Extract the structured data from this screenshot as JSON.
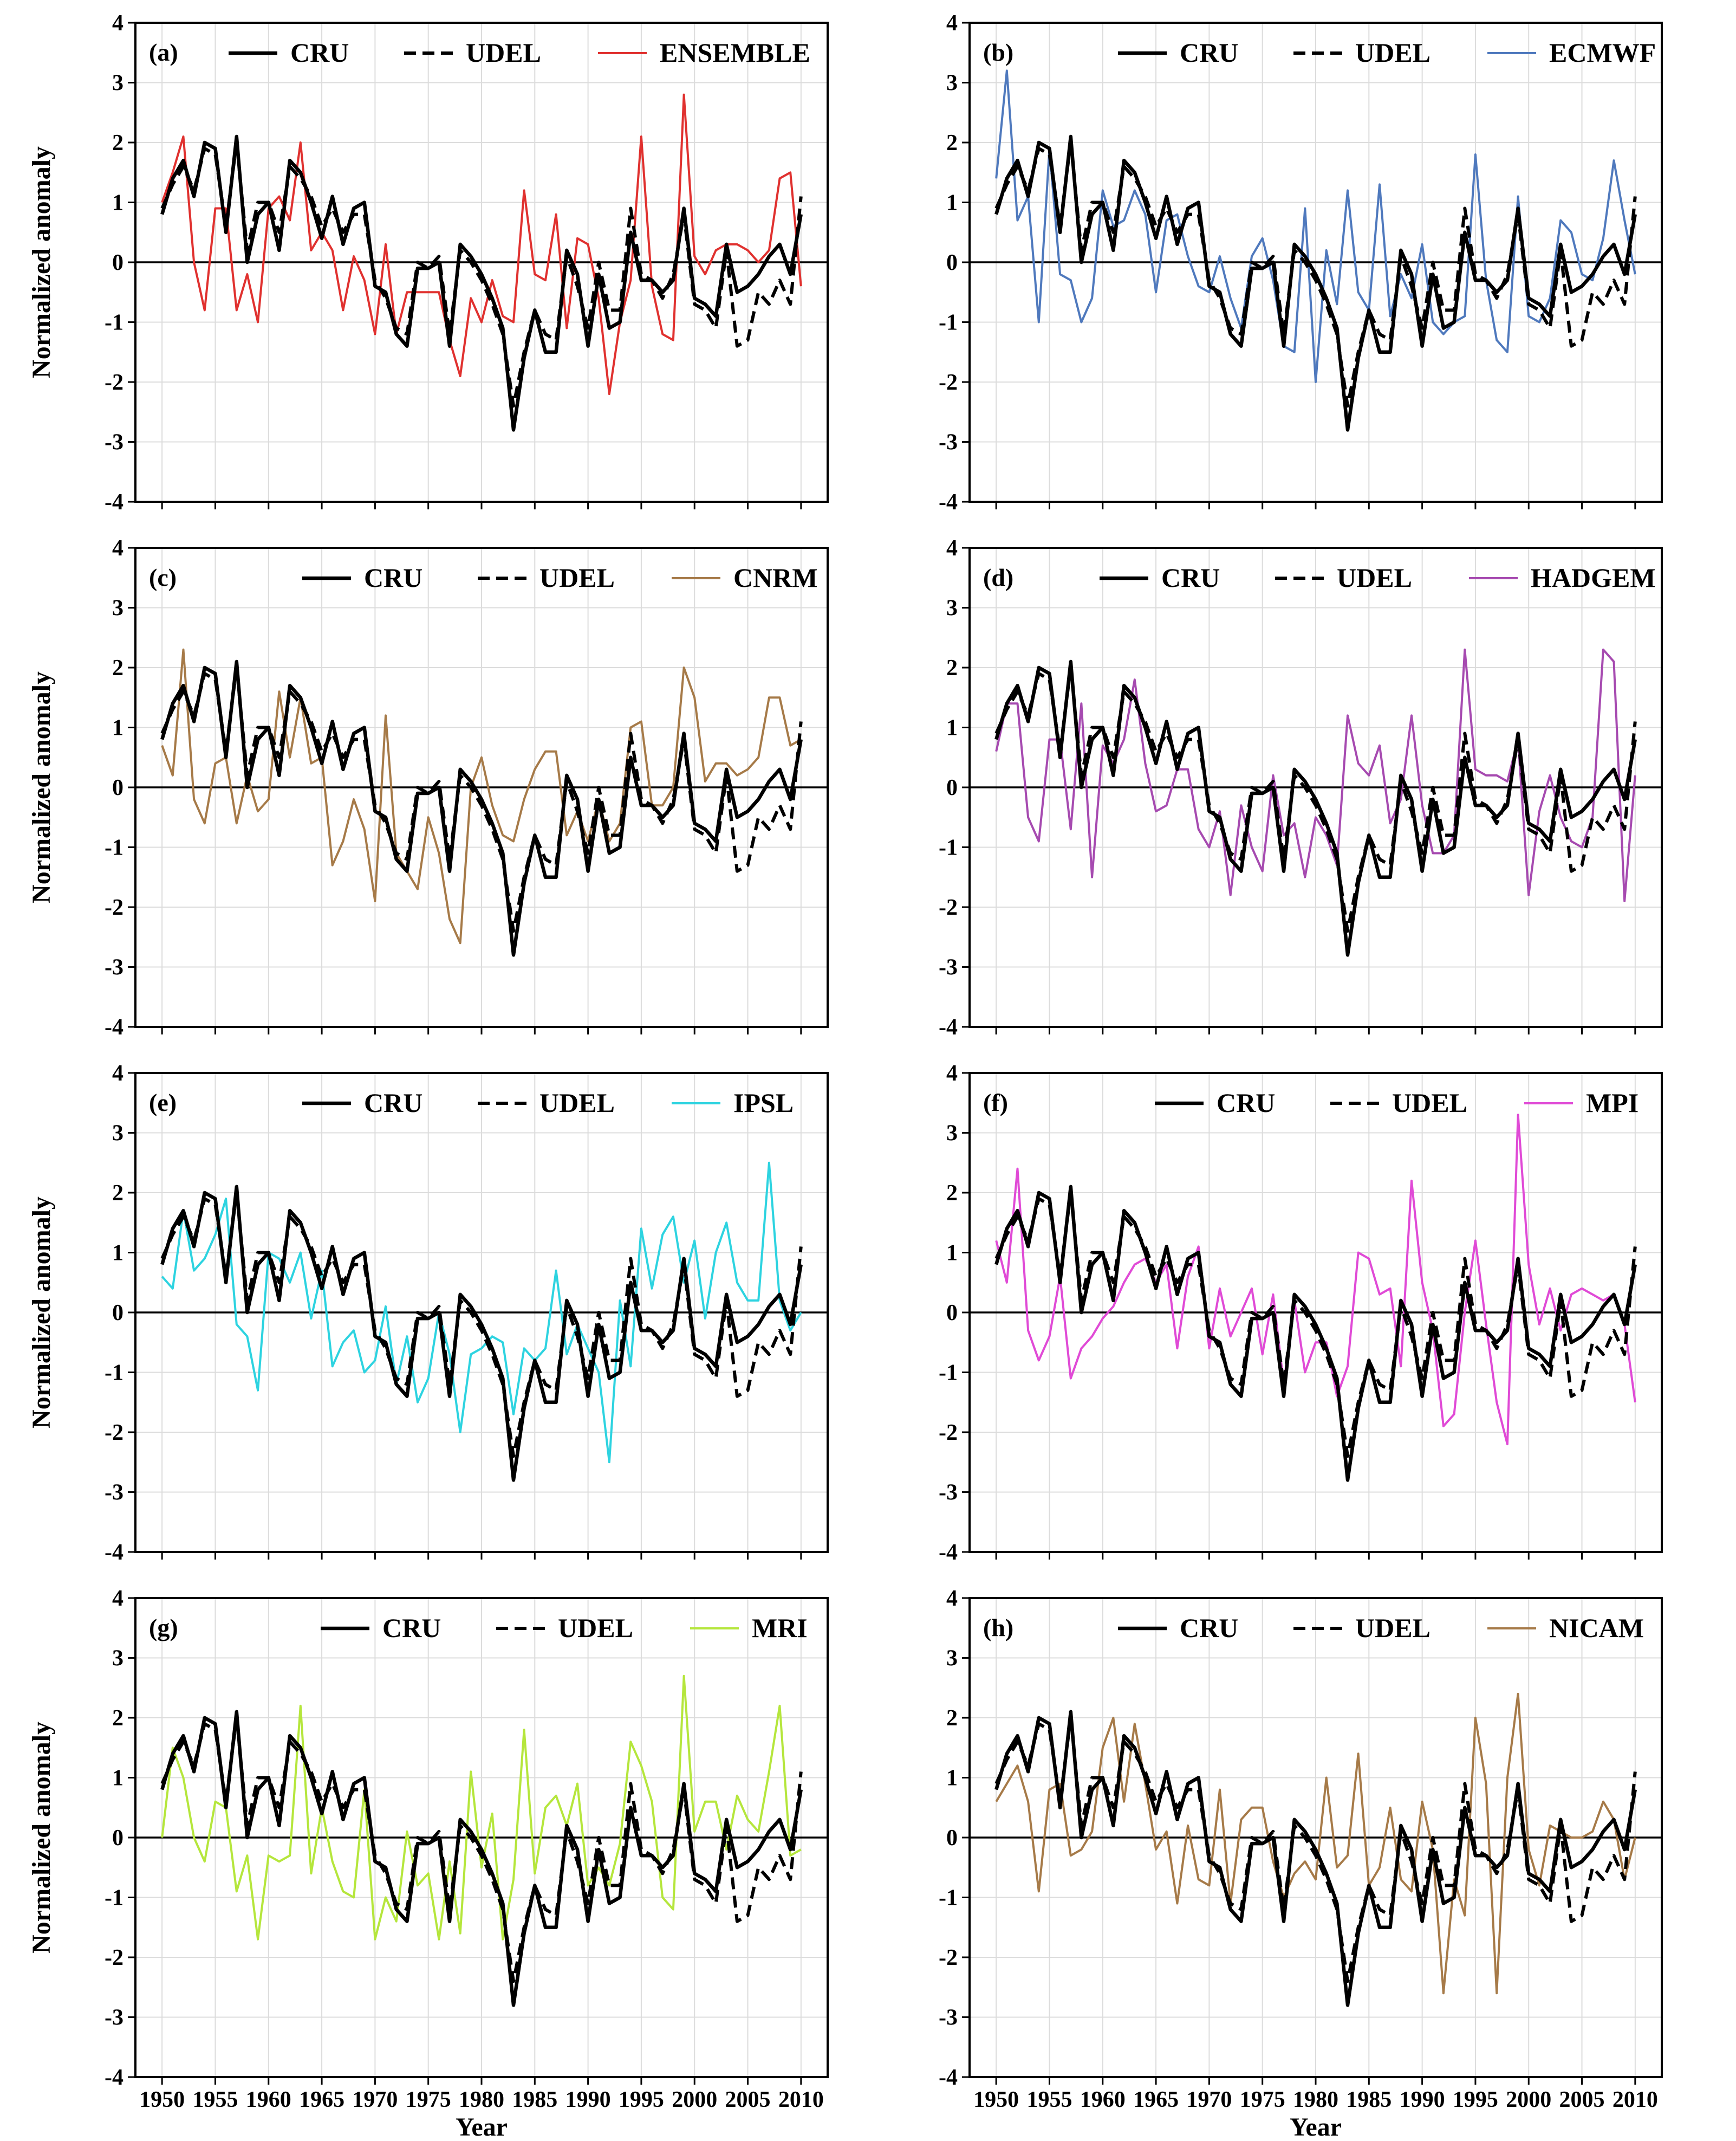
{
  "figure": {
    "ylabel": "Normalized anomaly",
    "xlabel": "Year",
    "xlim": [
      1947.5,
      2012.5
    ],
    "ylim": [
      -4,
      4
    ],
    "xticks": [
      1950,
      1955,
      1960,
      1965,
      1970,
      1975,
      1980,
      1985,
      1990,
      1995,
      2000,
      2005,
      2010
    ],
    "yticks": [
      4,
      3,
      2,
      1,
      0,
      -1,
      -2,
      -3,
      -4
    ],
    "legend_position": "top"
  },
  "chart_data": {
    "type": "line",
    "years": [
      1950,
      1951,
      1952,
      1953,
      1954,
      1955,
      1956,
      1957,
      1958,
      1959,
      1960,
      1961,
      1962,
      1963,
      1964,
      1965,
      1966,
      1967,
      1968,
      1969,
      1970,
      1971,
      1972,
      1973,
      1974,
      1975,
      1976,
      1977,
      1978,
      1979,
      1980,
      1981,
      1982,
      1983,
      1984,
      1985,
      1986,
      1987,
      1988,
      1989,
      1990,
      1991,
      1992,
      1993,
      1994,
      1995,
      1996,
      1997,
      1998,
      1999,
      2000,
      2001,
      2002,
      2003,
      2004,
      2005,
      2006,
      2007,
      2008,
      2009,
      2010
    ],
    "reference_series": [
      {
        "name": "CRU",
        "style": "solid",
        "color": "#000000",
        "values": [
          0.8,
          1.4,
          1.7,
          1.1,
          2.0,
          1.9,
          0.5,
          2.1,
          0.0,
          0.8,
          1.0,
          0.2,
          1.7,
          1.5,
          1.0,
          0.4,
          1.1,
          0.3,
          0.9,
          1.0,
          -0.4,
          -0.5,
          -1.2,
          -1.4,
          -0.1,
          -0.1,
          0.0,
          -1.4,
          0.3,
          0.1,
          -0.2,
          -0.6,
          -1.1,
          -2.8,
          -1.6,
          -0.8,
          -1.5,
          -1.5,
          0.2,
          -0.2,
          -1.4,
          -0.2,
          -1.1,
          -1.0,
          0.5,
          -0.3,
          -0.3,
          -0.5,
          -0.3,
          0.9,
          -0.6,
          -0.7,
          -0.9,
          0.3,
          -0.5,
          -0.4,
          -0.2,
          0.1,
          0.3,
          -0.2,
          0.8
        ]
      },
      {
        "name": "UDEL",
        "style": "dashed",
        "color": "#000000",
        "values": [
          0.9,
          1.3,
          1.6,
          1.2,
          1.9,
          1.8,
          0.6,
          2.0,
          0.2,
          1.0,
          1.0,
          0.5,
          1.6,
          1.4,
          1.1,
          0.6,
          0.9,
          0.5,
          0.8,
          0.8,
          -0.3,
          -0.6,
          -1.1,
          -1.2,
          0.0,
          -0.1,
          0.1,
          -1.2,
          0.2,
          0.0,
          -0.3,
          -0.7,
          -1.2,
          -2.4,
          -1.5,
          -0.8,
          -1.2,
          -1.3,
          0.1,
          -0.4,
          -1.1,
          0.0,
          -0.8,
          -0.8,
          0.9,
          -0.2,
          -0.3,
          -0.6,
          -0.2,
          0.8,
          -0.7,
          -0.8,
          -1.1,
          0.2,
          -1.4,
          -1.3,
          -0.5,
          -0.7,
          -0.3,
          -0.7,
          1.1
        ]
      }
    ],
    "panels": [
      {
        "label": "(a)",
        "model": "ENSEMBLE",
        "color": "#e0312f",
        "values": [
          1.0,
          1.5,
          2.1,
          0.0,
          -0.8,
          0.9,
          0.9,
          -0.8,
          -0.2,
          -1.0,
          0.9,
          1.1,
          0.7,
          2.0,
          0.2,
          0.5,
          0.2,
          -0.8,
          0.1,
          -0.3,
          -1.2,
          0.3,
          -1.2,
          -0.5,
          -0.5,
          -0.5,
          -0.5,
          -1.3,
          -1.9,
          -0.6,
          -1.0,
          -0.3,
          -0.9,
          -1.0,
          1.2,
          -0.2,
          -0.3,
          0.8,
          -1.1,
          0.4,
          0.3,
          -0.6,
          -2.2,
          -1.0,
          -0.3,
          2.1,
          -0.4,
          -1.2,
          -1.3,
          2.8,
          0.1,
          -0.2,
          0.2,
          0.3,
          0.3,
          0.2,
          0.0,
          0.2,
          1.4,
          1.5,
          -0.4
        ]
      },
      {
        "label": "(b)",
        "model": "ECMWF",
        "color": "#4f79bd",
        "values": [
          1.4,
          3.2,
          0.7,
          1.1,
          -1.0,
          1.9,
          -0.2,
          -0.3,
          -1.0,
          -0.6,
          1.2,
          0.6,
          0.7,
          1.2,
          0.8,
          -0.5,
          0.7,
          0.8,
          0.1,
          -0.4,
          -0.5,
          0.1,
          -0.6,
          -1.1,
          0.1,
          0.4,
          -0.3,
          -1.4,
          -1.5,
          0.9,
          -2.0,
          0.2,
          -0.7,
          1.2,
          -0.5,
          -0.8,
          1.3,
          -0.9,
          -0.2,
          -0.6,
          0.3,
          -1.0,
          -1.2,
          -1.0,
          -0.9,
          1.8,
          -0.3,
          -1.3,
          -1.5,
          1.1,
          -0.9,
          -1.0,
          -0.6,
          0.7,
          0.5,
          -0.2,
          -0.3,
          0.4,
          1.7,
          0.7,
          -0.2
        ]
      },
      {
        "label": "(c)",
        "model": "CNRM",
        "color": "#a67a48",
        "values": [
          0.7,
          0.2,
          2.3,
          -0.2,
          -0.6,
          0.4,
          0.5,
          -0.6,
          0.2,
          -0.4,
          -0.2,
          1.6,
          0.5,
          1.5,
          0.4,
          0.5,
          -1.3,
          -0.9,
          -0.2,
          -0.7,
          -1.9,
          1.2,
          -1.1,
          -1.4,
          -1.7,
          -0.5,
          -1.1,
          -2.2,
          -2.6,
          0.0,
          0.5,
          -0.3,
          -0.8,
          -0.9,
          -0.2,
          0.3,
          0.6,
          0.6,
          -0.8,
          -0.4,
          -0.9,
          -0.2,
          -0.9,
          -0.6,
          1.0,
          1.1,
          -0.3,
          -0.3,
          0.0,
          2.0,
          1.5,
          0.1,
          0.4,
          0.4,
          0.2,
          0.3,
          0.5,
          1.5,
          1.5,
          0.7,
          0.8
        ]
      },
      {
        "label": "(d)",
        "model": "HADGEM",
        "color": "#a64ab0",
        "values": [
          0.6,
          1.4,
          1.4,
          -0.5,
          -0.9,
          0.8,
          0.8,
          -0.7,
          1.4,
          -1.5,
          0.7,
          0.4,
          0.8,
          1.8,
          0.4,
          -0.4,
          -0.3,
          0.3,
          0.3,
          -0.7,
          -1.0,
          -0.4,
          -1.8,
          -0.3,
          -1.0,
          -1.4,
          0.2,
          -0.8,
          -0.6,
          -1.5,
          -0.5,
          -0.8,
          -1.3,
          1.2,
          0.4,
          0.2,
          0.7,
          -0.6,
          -0.2,
          1.2,
          -0.3,
          -1.1,
          -1.1,
          -0.8,
          2.3,
          0.3,
          0.2,
          0.2,
          0.1,
          0.8,
          -1.8,
          -0.4,
          0.2,
          -0.5,
          -0.9,
          -1.0,
          -0.5,
          2.3,
          2.1,
          -1.9,
          0.2
        ]
      },
      {
        "label": "(e)",
        "model": "IPSL",
        "color": "#2dd3e0",
        "values": [
          0.6,
          0.4,
          1.7,
          0.7,
          0.9,
          1.3,
          1.9,
          -0.2,
          -0.4,
          -1.3,
          1.0,
          0.9,
          0.5,
          1.0,
          -0.1,
          0.7,
          -0.9,
          -0.5,
          -0.3,
          -1.0,
          -0.8,
          0.1,
          -1.2,
          -0.4,
          -1.5,
          -1.1,
          0.0,
          -0.7,
          -2.0,
          -0.7,
          -0.6,
          -0.4,
          -0.5,
          -1.7,
          -0.6,
          -0.8,
          -0.6,
          0.7,
          -0.7,
          -0.2,
          -0.6,
          -1.0,
          -2.5,
          0.2,
          -0.9,
          1.4,
          0.4,
          1.3,
          1.6,
          0.5,
          1.2,
          -0.1,
          1.0,
          1.5,
          0.5,
          0.2,
          0.2,
          2.5,
          0.2,
          -0.3,
          0.0
        ]
      },
      {
        "label": "(f)",
        "model": "MPI",
        "color": "#e04ad6",
        "values": [
          1.2,
          0.5,
          2.4,
          -0.3,
          -0.8,
          -0.4,
          0.6,
          -1.1,
          -0.6,
          -0.4,
          -0.1,
          0.1,
          0.5,
          0.8,
          0.9,
          0.5,
          0.8,
          -0.6,
          0.6,
          1.1,
          -0.6,
          0.4,
          -0.4,
          0.0,
          0.4,
          -0.7,
          0.3,
          -1.2,
          0.2,
          -1.0,
          -0.5,
          -0.5,
          -1.4,
          -0.9,
          1.0,
          0.9,
          0.3,
          0.4,
          -0.9,
          2.2,
          0.5,
          -0.3,
          -1.9,
          -1.7,
          0.0,
          1.2,
          -0.2,
          -1.5,
          -2.2,
          3.3,
          0.8,
          -0.2,
          0.4,
          -0.3,
          0.3,
          0.4,
          0.3,
          0.2,
          0.3,
          -0.2,
          -1.5
        ]
      },
      {
        "label": "(g)",
        "model": "MRI",
        "color": "#b5e63c",
        "values": [
          0.0,
          1.5,
          1.0,
          0.0,
          -0.4,
          0.6,
          0.5,
          -0.9,
          -0.3,
          -1.7,
          -0.3,
          -0.4,
          -0.3,
          2.2,
          -0.6,
          0.5,
          -0.4,
          -0.9,
          -1.0,
          0.8,
          -1.7,
          -1.0,
          -1.4,
          0.1,
          -0.8,
          -0.6,
          -1.7,
          -0.4,
          -1.6,
          1.1,
          -0.5,
          0.4,
          -1.7,
          -0.7,
          1.8,
          -0.6,
          0.5,
          0.7,
          0.2,
          0.9,
          -0.8,
          -0.5,
          -0.8,
          -0.1,
          1.6,
          1.2,
          0.6,
          -1.0,
          -1.2,
          2.7,
          0.1,
          0.6,
          0.6,
          -0.2,
          0.7,
          0.3,
          0.1,
          1.1,
          2.2,
          -0.3,
          -0.2
        ]
      },
      {
        "label": "(h)",
        "model": "NICAM",
        "color": "#a67a48",
        "values": [
          0.6,
          0.9,
          1.2,
          0.6,
          -0.9,
          0.8,
          0.9,
          -0.3,
          -0.2,
          0.1,
          1.5,
          2.0,
          0.6,
          1.9,
          0.9,
          -0.2,
          0.1,
          -1.1,
          0.2,
          -0.7,
          -0.8,
          0.8,
          -1.1,
          0.3,
          0.5,
          0.5,
          -0.4,
          -1.0,
          -0.6,
          -0.4,
          -0.7,
          1.0,
          -0.5,
          -0.3,
          1.4,
          -0.8,
          -0.5,
          0.5,
          -0.7,
          -0.9,
          0.6,
          -0.2,
          -2.6,
          -0.7,
          -1.3,
          2.0,
          0.9,
          -2.6,
          1.0,
          2.4,
          -0.2,
          -0.8,
          0.2,
          0.1,
          0.0,
          0.0,
          0.1,
          0.6,
          0.3,
          -0.7,
          0.0
        ]
      }
    ]
  }
}
